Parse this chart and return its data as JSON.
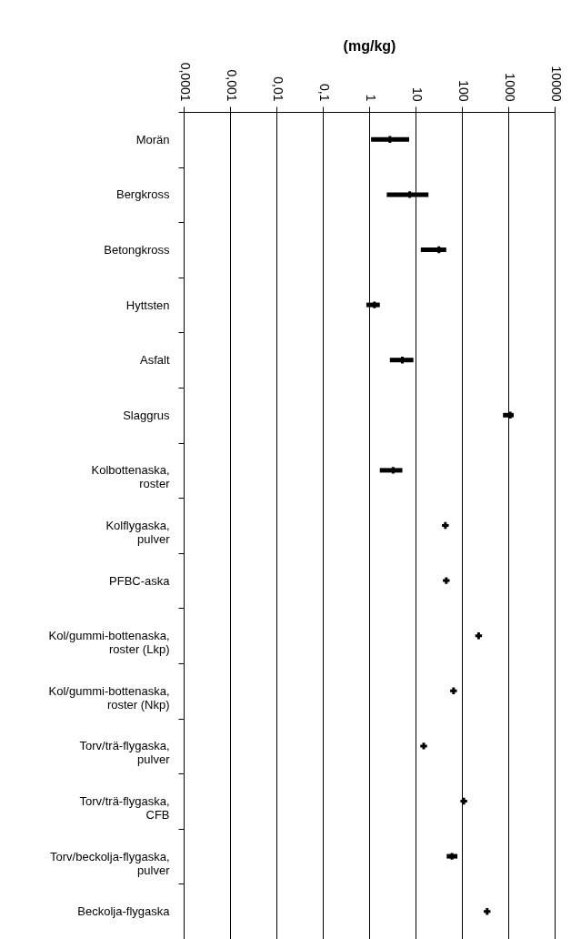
{
  "chart_data": {
    "type": "scatter",
    "orientation": "horizontal",
    "xlabel": "(mg/kg)",
    "color": "#000000",
    "marker": "cross",
    "log": "x",
    "grid": "x",
    "categories": [
      "Morän",
      "Bergkross",
      "Betongkross",
      "Hyttsten",
      "Asfalt",
      "Slaggrus",
      "Kolbottenaska, roster",
      "Kolflygaska, pulver",
      "PFBC-aska",
      "Kol/gummi-bottenaska, roster (Lkp)",
      "Kol/gummi-bottenaska, roster (Nkp)",
      "Torv/trä-flygaska, pulver",
      "Torv/trä-flygaska, CFB",
      "Torv/beckolja-flygaska, pulver",
      "Beckolja-flygaska"
    ],
    "values": [
      2.8,
      7.5,
      32,
      1.3,
      5.2,
      1100,
      3.3,
      44,
      46,
      230,
      66,
      15,
      110,
      61,
      350
    ],
    "errors": [
      [
        1.1,
        7.3
      ],
      [
        2.4,
        19
      ],
      [
        13,
        46
      ],
      [
        0.87,
        1.7
      ],
      [
        2.8,
        9
      ],
      [
        770,
        1300
      ],
      [
        1.7,
        5.2
      ],
      null,
      null,
      null,
      null,
      null,
      null,
      [
        47,
        80
      ],
      null
    ],
    "xlim": [
      0.0001,
      10000
    ],
    "xticks": [
      {
        "value": 0.0001,
        "label": "0,0001"
      },
      {
        "value": 0.001,
        "label": "0,001"
      },
      {
        "value": 0.01,
        "label": "0,01"
      },
      {
        "value": 0.1,
        "label": "0,1"
      },
      1,
      10,
      100,
      1000,
      10000
    ]
  }
}
